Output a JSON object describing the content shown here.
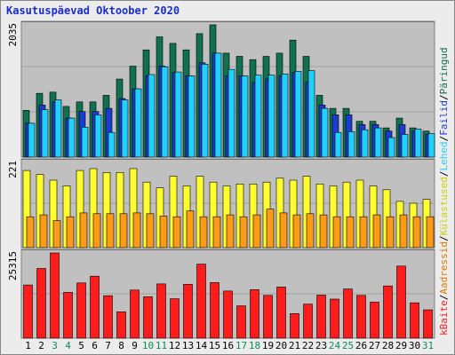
{
  "chart_data": {
    "type": "bar",
    "title": "Kasutuspäevad Oktoober 2020",
    "categories": [
      "1",
      "2",
      "3",
      "4",
      "5",
      "6",
      "7",
      "8",
      "9",
      "10",
      "11",
      "12",
      "13",
      "14",
      "15",
      "16",
      "17",
      "18",
      "19",
      "20",
      "21",
      "22",
      "23",
      "24",
      "25",
      "26",
      "27",
      "28",
      "29",
      "30",
      "31"
    ],
    "weekend_days": [
      "3",
      "4",
      "10",
      "11",
      "17",
      "18",
      "24",
      "25",
      "31"
    ],
    "panels": [
      {
        "max_label": "2035",
        "ymax": 2035,
        "series": [
          {
            "name": "Päringud",
            "color": "#107050",
            "values": [
              720,
              980,
              1000,
              780,
              850,
              850,
              950,
              1200,
              1400,
              1650,
              1850,
              1750,
              1650,
              1900,
              2035,
              1600,
              1550,
              1500,
              1550,
              1600,
              1800,
              1550,
              950,
              750,
              750,
              550,
              550,
              450,
              600,
              450,
              400
            ]
          },
          {
            "name": "Failid",
            "color": "#1c3cd0",
            "values": [
              520,
              800,
              850,
              600,
              700,
              700,
              750,
              900,
              1050,
              1250,
              1400,
              1300,
              1250,
              1450,
              1600,
              1250,
              1250,
              1150,
              1200,
              1250,
              1300,
              1150,
              800,
              650,
              650,
              500,
              500,
              400,
              500,
              400,
              350
            ]
          },
          {
            "name": "Lehed",
            "color": "#20d0ff",
            "values": [
              520,
              730,
              880,
              600,
              460,
              650,
              380,
              880,
              1050,
              1270,
              1390,
              1310,
              1250,
              1430,
              1600,
              1350,
              1250,
              1260,
              1260,
              1280,
              1320,
              1330,
              750,
              380,
              390,
              420,
              450,
              300,
              350,
              430,
              360
            ]
          }
        ]
      },
      {
        "max_label": "221",
        "ymax": 221,
        "series": [
          {
            "name": "Külastused",
            "color": "#ffff30",
            "values": [
              200,
              190,
              175,
              160,
              200,
              205,
              195,
              195,
              205,
              170,
              155,
              185,
              160,
              185,
              170,
              160,
              165,
              165,
              170,
              180,
              175,
              185,
              165,
              160,
              170,
              175,
              160,
              150,
              120,
              115,
              125
            ]
          },
          {
            "name": "Aadressid",
            "color": "#ff9a1a",
            "values": [
              80,
              85,
              70,
              80,
              90,
              88,
              88,
              88,
              90,
              88,
              82,
              80,
              95,
              80,
              80,
              85,
              80,
              85,
              100,
              90,
              85,
              88,
              85,
              80,
              80,
              80,
              85,
              80,
              85,
              80,
              80
            ]
          }
        ]
      },
      {
        "max_label": "25315",
        "ymax": 25315,
        "series": [
          {
            "name": "kBaite",
            "color": "#ff1c1c",
            "values": [
              15800,
              20700,
              25315,
              13600,
              16400,
              18400,
              12600,
              7800,
              14300,
              12300,
              16100,
              11700,
              16000,
              22000,
              16500,
              14000,
              9600,
              14400,
              12700,
              15200,
              7300,
              10100,
              12800,
              11600,
              14600,
              12700,
              10700,
              15500,
              21400,
              10500,
              8400
            ]
          }
        ]
      }
    ],
    "right_legend": [
      {
        "label": "Päringud",
        "color": "#107050"
      },
      {
        "label": "Failid",
        "color": "#1c3cd0"
      },
      {
        "label": "Lehed",
        "color": "#20d0ff"
      },
      {
        "label": "Külastused",
        "color": "#d0d000"
      },
      {
        "label": "Aadressid",
        "color": "#e07a00"
      },
      {
        "label": "kBaite",
        "color": "#ff1c1c"
      }
    ],
    "legend_separator": "/",
    "grid": true,
    "legend_placement": "right"
  }
}
